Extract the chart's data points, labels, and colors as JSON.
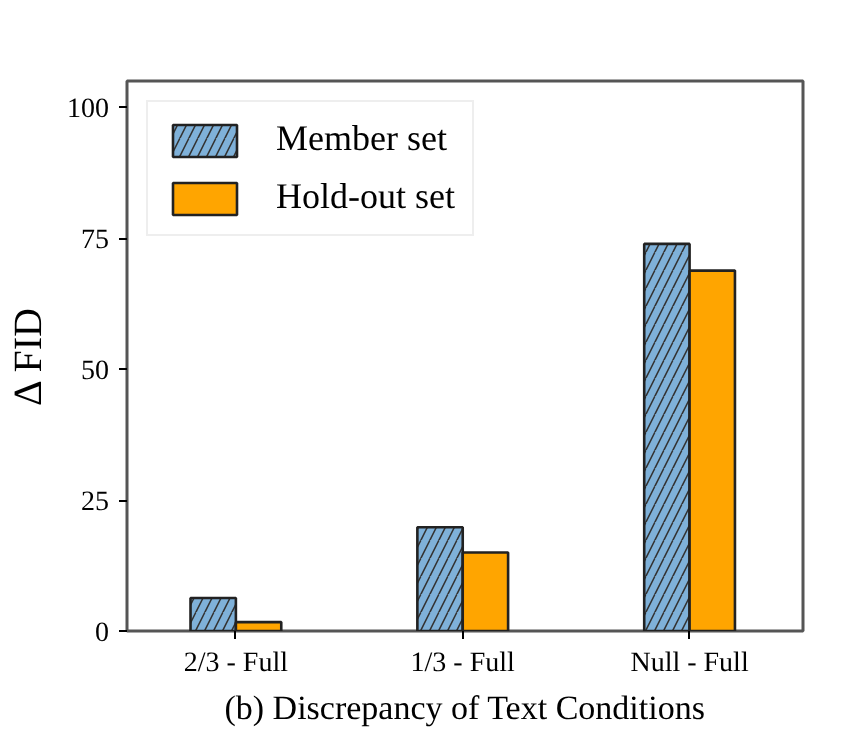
{
  "chart_data": {
    "type": "bar",
    "xlabel": "(b) Discrepancy of Text Conditions",
    "ylabel": "Δ FID",
    "categories": [
      "2/3 - Full",
      "1/3 - Full",
      "Null - Full"
    ],
    "series": [
      {
        "name": "Member set",
        "color": "#7fb1d9",
        "values": [
          6.3,
          19.8,
          73.9
        ]
      },
      {
        "name": "Hold-out set",
        "color": "#ffa500",
        "values": [
          1.7,
          15,
          68.8
        ]
      }
    ],
    "ylim": [
      0,
      105
    ],
    "yticks": [
      0,
      25,
      50,
      75,
      100
    ],
    "grid": false,
    "legend": "top left"
  }
}
